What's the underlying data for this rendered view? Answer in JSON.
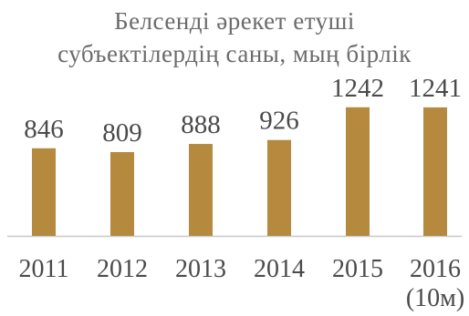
{
  "chart_data": {
    "type": "bar",
    "title": [
      "Белсенді әрекет етуші",
      "субъектілердің саны, мың бірлік"
    ],
    "categories": [
      "2011",
      "2012",
      "2013",
      "2014",
      "2015",
      "2016 (10м)"
    ],
    "category_lines": [
      [
        "2011"
      ],
      [
        "2012"
      ],
      [
        "2013"
      ],
      [
        "2014"
      ],
      [
        "2015"
      ],
      [
        "2016",
        "(10м)"
      ]
    ],
    "values": [
      846,
      809,
      888,
      926,
      1242,
      1241
    ],
    "data_labels": [
      "846",
      "809",
      "888",
      "926",
      "1242",
      "1241"
    ],
    "ylim": [
      0,
      1300
    ],
    "grid": false,
    "bar_color": "#b58a3e",
    "baseline_color": "#c8c8c8"
  }
}
